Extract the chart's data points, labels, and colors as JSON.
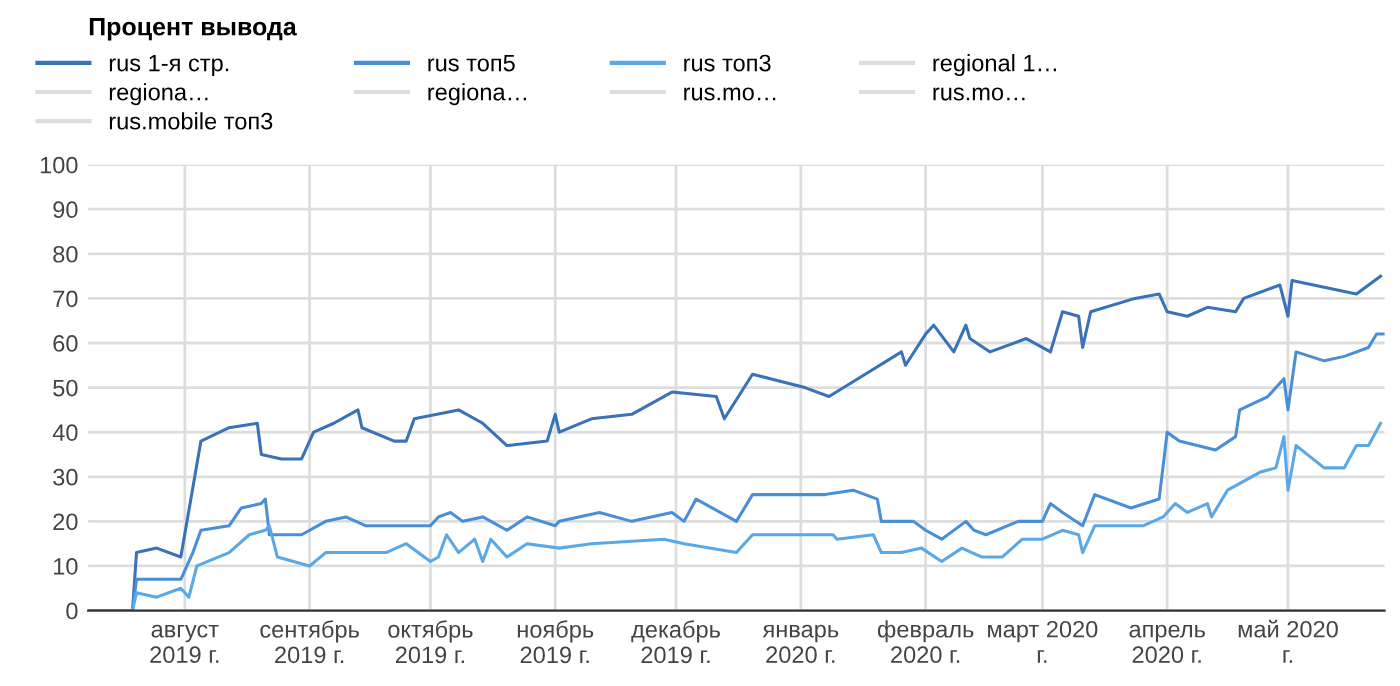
{
  "chart_data": {
    "type": "line",
    "title": "Процент вывода",
    "xlim": [
      "2019-07-08",
      "2020-05-25"
    ],
    "ylim": [
      0,
      100
    ],
    "yticks": [
      0,
      10,
      20,
      30,
      40,
      50,
      60,
      70,
      80,
      90,
      100
    ],
    "xticks": [
      {
        "value": "2019-08-01",
        "label": "август\n2019 г."
      },
      {
        "value": "2019-09-01",
        "label": "сентябрь\n2019 г."
      },
      {
        "value": "2019-10-01",
        "label": "октябрь\n2019 г."
      },
      {
        "value": "2019-11-01",
        "label": "ноябрь\n2019 г."
      },
      {
        "value": "2019-12-01",
        "label": "декабрь\n2019 г."
      },
      {
        "value": "2020-01-01",
        "label": "январь\n2020 г."
      },
      {
        "value": "2020-02-01",
        "label": "февраль\n2020 г."
      },
      {
        "value": "2020-03-01",
        "label": "март 2020\nг."
      },
      {
        "value": "2020-04-01",
        "label": "апрель\n2020 г."
      },
      {
        "value": "2020-05-01",
        "label": "май 2020\nг."
      }
    ],
    "grid": true,
    "legend": "top",
    "marker": "none",
    "line_style": "solid",
    "series": [
      {
        "name": "rus 1-я стр.",
        "color": "#3a72b8",
        "x": [
          "2019-07-08",
          "2019-07-19",
          "2019-07-20",
          "2019-07-25",
          "2019-07-31",
          "2019-08-05",
          "2019-08-12",
          "2019-08-19",
          "2019-08-20",
          "2019-08-25",
          "2019-08-30",
          "2019-09-02",
          "2019-09-07",
          "2019-09-13",
          "2019-09-14",
          "2019-09-22",
          "2019-09-25",
          "2019-09-27",
          "2019-10-08",
          "2019-10-14",
          "2019-10-20",
          "2019-10-30",
          "2019-11-01",
          "2019-11-02",
          "2019-11-10",
          "2019-11-20",
          "2019-11-30",
          "2019-12-11",
          "2019-12-13",
          "2019-12-20",
          "2020-01-02",
          "2020-01-08",
          "2020-01-17",
          "2020-01-26",
          "2020-01-27",
          "2020-02-01",
          "2020-02-03",
          "2020-02-08",
          "2020-02-11",
          "2020-02-12",
          "2020-02-17",
          "2020-02-26",
          "2020-03-03",
          "2020-03-06",
          "2020-03-10",
          "2020-03-11",
          "2020-03-13",
          "2020-03-24",
          "2020-03-30",
          "2020-04-01",
          "2020-04-06",
          "2020-04-11",
          "2020-04-18",
          "2020-04-20",
          "2020-04-29",
          "2020-05-01",
          "2020-05-02",
          "2020-05-18",
          "2020-05-24"
        ],
        "values": [
          0,
          0,
          13,
          14,
          12,
          38,
          41,
          42,
          35,
          34,
          34,
          40,
          42,
          45,
          41,
          38,
          38,
          43,
          45,
          42,
          37,
          38,
          44,
          40,
          43,
          44,
          49,
          48,
          43,
          53,
          50,
          48,
          53,
          58,
          55,
          62,
          64,
          58,
          64,
          61,
          58,
          61,
          58,
          67,
          66,
          59,
          67,
          70,
          71,
          67,
          66,
          68,
          67,
          70,
          73,
          66,
          74,
          71,
          75
        ]
      },
      {
        "name": "rus топ5",
        "color": "#4a8fd6",
        "x": [
          "2019-07-08",
          "2019-07-19",
          "2019-07-20",
          "2019-07-31",
          "2019-08-03",
          "2019-08-05",
          "2019-08-12",
          "2019-08-15",
          "2019-08-20",
          "2019-08-21",
          "2019-08-22",
          "2019-08-30",
          "2019-09-05",
          "2019-09-10",
          "2019-09-15",
          "2019-09-22",
          "2019-10-01",
          "2019-10-03",
          "2019-10-06",
          "2019-10-09",
          "2019-10-14",
          "2019-10-20",
          "2019-10-25",
          "2019-11-01",
          "2019-11-02",
          "2019-11-12",
          "2019-11-20",
          "2019-11-30",
          "2019-12-03",
          "2019-12-06",
          "2019-12-16",
          "2019-12-20",
          "2020-01-07",
          "2020-01-14",
          "2020-01-20",
          "2020-01-21",
          "2020-01-29",
          "2020-02-01",
          "2020-02-05",
          "2020-02-11",
          "2020-02-13",
          "2020-02-16",
          "2020-02-24",
          "2020-03-01",
          "2020-03-03",
          "2020-03-06",
          "2020-03-11",
          "2020-03-14",
          "2020-03-23",
          "2020-03-30",
          "2020-04-01",
          "2020-04-04",
          "2020-04-13",
          "2020-04-18",
          "2020-04-19",
          "2020-04-26",
          "2020-04-30",
          "2020-05-01",
          "2020-05-03",
          "2020-05-10",
          "2020-05-15",
          "2020-05-21",
          "2020-05-23",
          "2020-05-25"
        ],
        "values": [
          0,
          0,
          7,
          7,
          13,
          18,
          19,
          23,
          24,
          25,
          17,
          17,
          20,
          21,
          19,
          19,
          19,
          21,
          22,
          20,
          21,
          18,
          21,
          19,
          20,
          22,
          20,
          22,
          20,
          25,
          20,
          26,
          26,
          27,
          25,
          20,
          20,
          18,
          16,
          20,
          18,
          17,
          20,
          20,
          24,
          22,
          19,
          26,
          23,
          25,
          40,
          38,
          36,
          39,
          45,
          48,
          52,
          45,
          58,
          56,
          57,
          59,
          62,
          62
        ]
      },
      {
        "name": "rus топ3",
        "color": "#5aa8e6",
        "x": [
          "2019-07-08",
          "2019-07-19",
          "2019-07-20",
          "2019-07-25",
          "2019-07-31",
          "2019-08-02",
          "2019-08-04",
          "2019-08-12",
          "2019-08-17",
          "2019-08-21",
          "2019-08-22",
          "2019-08-24",
          "2019-09-01",
          "2019-09-05",
          "2019-09-13",
          "2019-09-20",
          "2019-09-25",
          "2019-10-01",
          "2019-10-03",
          "2019-10-05",
          "2019-10-08",
          "2019-10-12",
          "2019-10-14",
          "2019-10-16",
          "2019-10-20",
          "2019-10-25",
          "2019-11-02",
          "2019-11-10",
          "2019-11-28",
          "2019-12-03",
          "2019-12-16",
          "2019-12-20",
          "2019-12-31",
          "2020-01-09",
          "2020-01-10",
          "2020-01-19",
          "2020-01-21",
          "2020-01-26",
          "2020-01-31",
          "2020-02-05",
          "2020-02-10",
          "2020-02-15",
          "2020-02-20",
          "2020-02-25",
          "2020-03-01",
          "2020-03-06",
          "2020-03-10",
          "2020-03-11",
          "2020-03-14",
          "2020-03-26",
          "2020-03-31",
          "2020-04-03",
          "2020-04-06",
          "2020-04-11",
          "2020-04-12",
          "2020-04-16",
          "2020-04-24",
          "2020-04-28",
          "2020-04-30",
          "2020-05-01",
          "2020-05-03",
          "2020-05-10",
          "2020-05-15",
          "2020-05-18",
          "2020-05-21",
          "2020-05-24"
        ],
        "values": [
          0,
          0,
          4,
          3,
          5,
          3,
          10,
          13,
          17,
          18,
          19,
          12,
          10,
          13,
          13,
          13,
          15,
          11,
          12,
          17,
          13,
          16,
          11,
          16,
          12,
          15,
          14,
          15,
          16,
          15,
          13,
          17,
          17,
          17,
          16,
          17,
          13,
          13,
          14,
          11,
          14,
          12,
          12,
          16,
          16,
          18,
          17,
          13,
          19,
          19,
          21,
          24,
          22,
          24,
          21,
          27,
          31,
          32,
          39,
          27,
          37,
          32,
          32,
          37,
          37,
          42
        ]
      },
      {
        "name": "regional 1…",
        "color": "#dddddd"
      },
      {
        "name": "regiona…",
        "color": "#dddddd"
      },
      {
        "name": "regiona…",
        "color": "#dddddd"
      },
      {
        "name": "rus.mo…",
        "color": "#dddddd"
      },
      {
        "name": "rus.mo…",
        "color": "#dddddd"
      },
      {
        "name": "rus.mobile топ3",
        "color": "#dddddd"
      }
    ]
  }
}
